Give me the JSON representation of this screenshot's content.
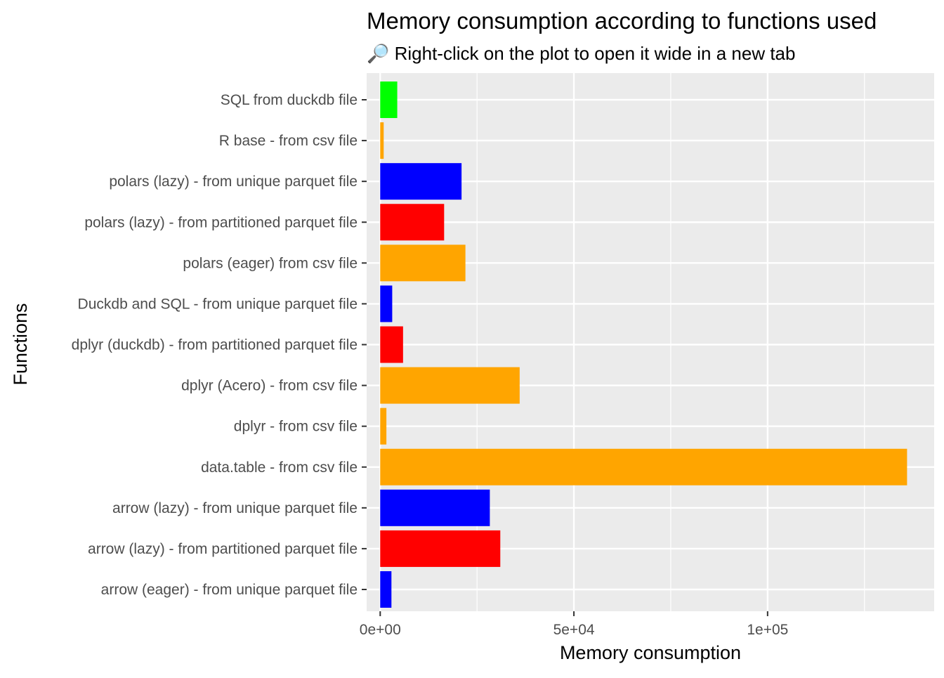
{
  "chart_data": {
    "type": "bar",
    "orientation": "horizontal",
    "title": "Memory consumption according to functions used",
    "subtitle": "🔎 Right-click on the plot to open it wide in a new tab",
    "xlabel": "Memory consumption",
    "ylabel": "Functions",
    "xlim": [
      -3500,
      143000
    ],
    "xticks": [
      {
        "value": 0,
        "label": "0e+00"
      },
      {
        "value": 50000,
        "label": "5e+04"
      },
      {
        "value": 100000,
        "label": "1e+05"
      }
    ],
    "x_minor_gridlines": [
      25000,
      75000,
      125000
    ],
    "grid": true,
    "legend": "none",
    "categories": [
      "SQL from duckdb file",
      "R base - from csv file",
      "polars (lazy) - from unique parquet file",
      "polars (lazy) - from partitioned parquet file",
      "polars (eager) from csv file",
      "Duckdb and SQL - from unique parquet file",
      "dplyr (duckdb) - from partitioned parquet file",
      "dplyr (Acero) - from csv file",
      "dplyr - from csv file",
      "data.table - from csv file",
      "arrow (lazy) - from unique parquet file",
      "arrow (lazy) - from partitioned parquet file",
      "arrow (eager) - from unique parquet file"
    ],
    "values": [
      4400,
      900,
      21000,
      16500,
      22000,
      3100,
      5900,
      36000,
      1600,
      136000,
      28300,
      31000,
      2900
    ],
    "colors": [
      "#00ff00",
      "#ffa500",
      "#0000ff",
      "#ff0000",
      "#ffa500",
      "#0000ff",
      "#ff0000",
      "#ffa500",
      "#ffa500",
      "#ffa500",
      "#0000ff",
      "#ff0000",
      "#0000ff"
    ]
  },
  "colors": {
    "panel_background": "#ebebeb",
    "gridline": "#ffffff",
    "tick_text": "#4d4d4d",
    "tick_mark": "#333333"
  }
}
